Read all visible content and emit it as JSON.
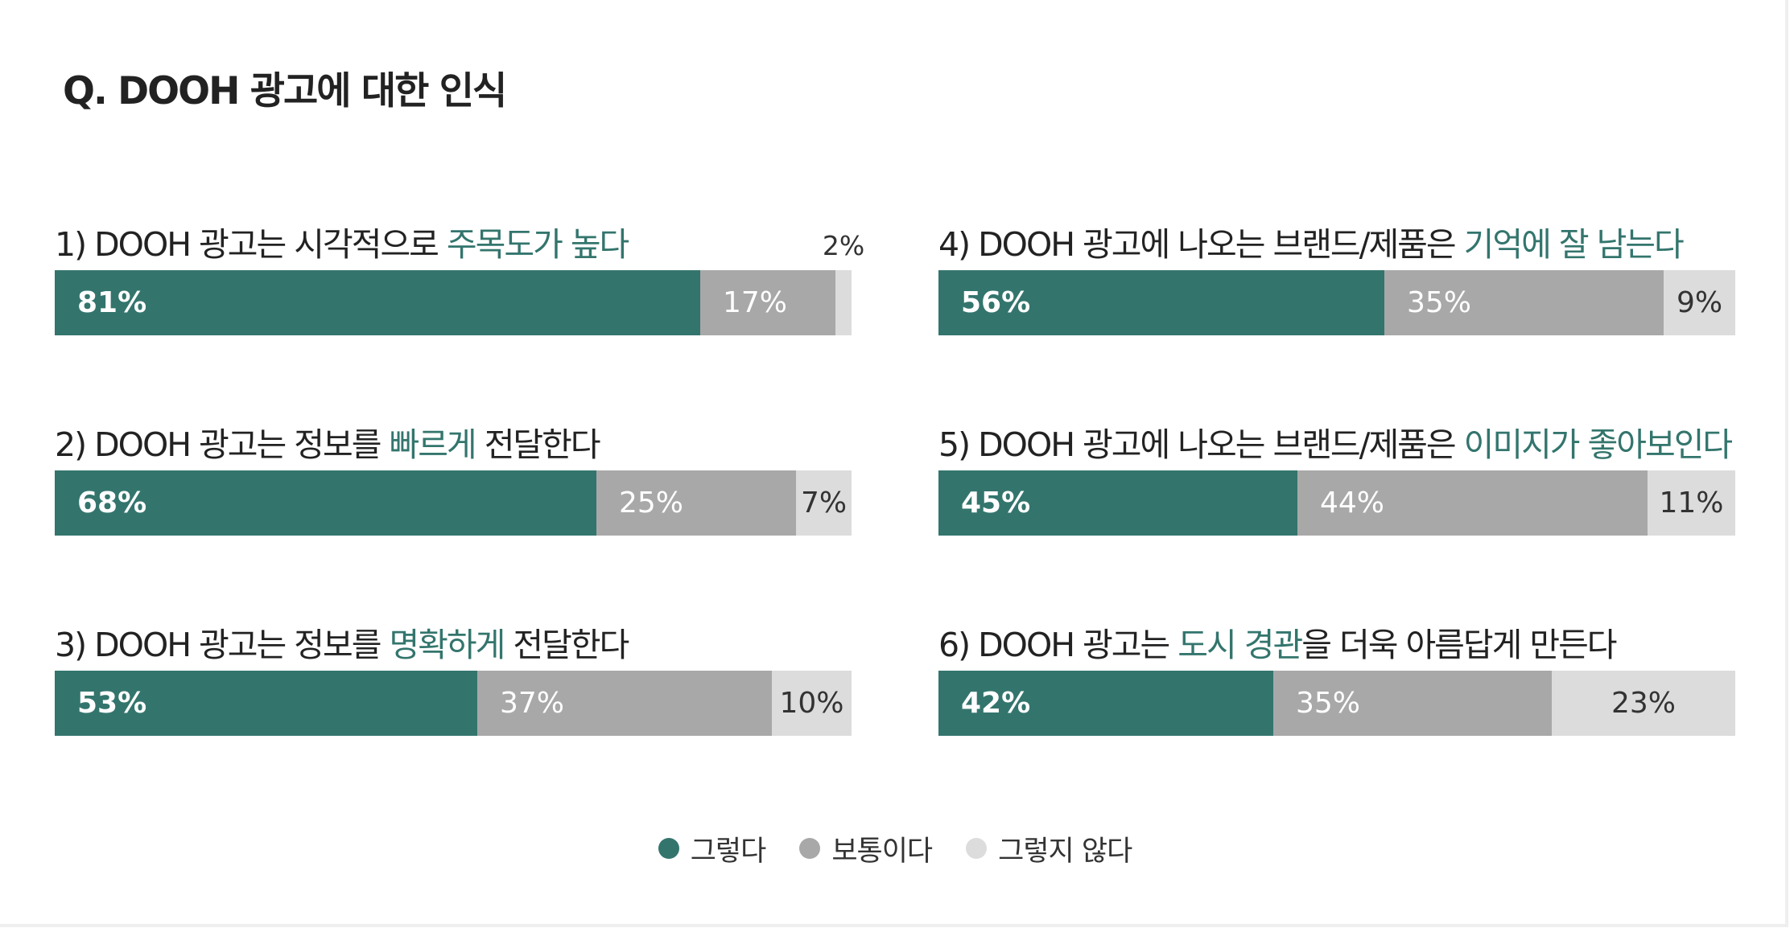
{
  "title": "Q. DOOH 광고에 대한 인식",
  "legend": [
    {
      "label": "그렇다",
      "color": "#33756d"
    },
    {
      "label": "보통이다",
      "color": "#a8a8a8"
    },
    {
      "label": "그렇지 않다",
      "color": "#dcdcdc"
    }
  ],
  "chart_data": {
    "type": "bar",
    "orientation": "horizontal-stacked-100",
    "title": "Q. DOOH 광고에 대한 인식",
    "series_names": [
      "그렇다",
      "보통이다",
      "그렇지 않다"
    ],
    "series_colors": [
      "#33756d",
      "#a8a8a8",
      "#dcdcdc"
    ],
    "items": [
      {
        "q_pre": "1) DOOH 광고는 시각적으로 ",
        "q_hl": "주목도가 높다",
        "q_post": "",
        "values": [
          81,
          17,
          2
        ],
        "labels": [
          "81%",
          "17%",
          "2%"
        ]
      },
      {
        "q_pre": "2) DOOH 광고는 정보를 ",
        "q_hl": "빠르게",
        "q_post": " 전달한다",
        "values": [
          68,
          25,
          7
        ],
        "labels": [
          "68%",
          "25%",
          "7%"
        ]
      },
      {
        "q_pre": "3) DOOH 광고는 정보를 ",
        "q_hl": "명확하게",
        "q_post": " 전달한다",
        "values": [
          53,
          37,
          10
        ],
        "labels": [
          "53%",
          "37%",
          "10%"
        ]
      },
      {
        "q_pre": "4) DOOH 광고에 나오는 브랜드/제품은 ",
        "q_hl": "기억에 잘 남는다",
        "q_post": "",
        "values": [
          56,
          35,
          9
        ],
        "labels": [
          "56%",
          "35%",
          "9%"
        ]
      },
      {
        "q_pre": "5) DOOH 광고에 나오는 브랜드/제품은 ",
        "q_hl": "이미지가 좋아보인다",
        "q_post": "",
        "values": [
          45,
          44,
          11
        ],
        "labels": [
          "45%",
          "44%",
          "11%"
        ]
      },
      {
        "q_pre": "6) DOOH 광고는 ",
        "q_hl": "도시 경관",
        "q_post": "을 더욱 아름답게 만든다",
        "values": [
          42,
          35,
          23
        ],
        "labels": [
          "42%",
          "35%",
          "23%"
        ]
      }
    ]
  }
}
